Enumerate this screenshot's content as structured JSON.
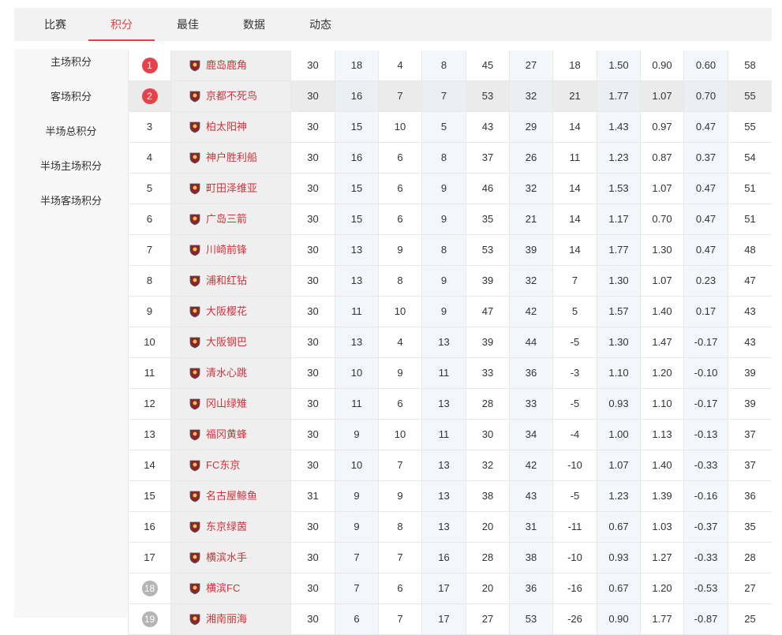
{
  "tabs": {
    "items": [
      "比赛",
      "积分",
      "最佳",
      "数据",
      "动态"
    ],
    "active": 1
  },
  "sidebar": {
    "items": [
      "主场积分",
      "客场积分",
      "半场总积分",
      "半场主场积分",
      "半场客场积分"
    ]
  },
  "table": {
    "highlight_row": 1,
    "rows": [
      {
        "rank": "1",
        "badge": "#e5424c",
        "team": "鹿岛鹿角",
        "stats": [
          "30",
          "18",
          "4",
          "8",
          "45",
          "27",
          "18",
          "1.50",
          "0.90",
          "0.60",
          "58"
        ]
      },
      {
        "rank": "2",
        "badge": "#e5424c",
        "team": "京都不死鸟",
        "stats": [
          "30",
          "16",
          "7",
          "7",
          "53",
          "32",
          "21",
          "1.77",
          "1.07",
          "0.70",
          "55"
        ]
      },
      {
        "rank": "3",
        "team": "柏太阳神",
        "stats": [
          "30",
          "15",
          "10",
          "5",
          "43",
          "29",
          "14",
          "1.43",
          "0.97",
          "0.47",
          "55"
        ]
      },
      {
        "rank": "4",
        "team": "神户胜利船",
        "stats": [
          "30",
          "16",
          "6",
          "8",
          "37",
          "26",
          "11",
          "1.23",
          "0.87",
          "0.37",
          "54"
        ]
      },
      {
        "rank": "5",
        "team": "町田泽维亚",
        "stats": [
          "30",
          "15",
          "6",
          "9",
          "46",
          "32",
          "14",
          "1.53",
          "1.07",
          "0.47",
          "51"
        ]
      },
      {
        "rank": "6",
        "team": "广岛三箭",
        "stats": [
          "30",
          "15",
          "6",
          "9",
          "35",
          "21",
          "14",
          "1.17",
          "0.70",
          "0.47",
          "51"
        ]
      },
      {
        "rank": "7",
        "team": "川崎前锋",
        "stats": [
          "30",
          "13",
          "9",
          "8",
          "53",
          "39",
          "14",
          "1.77",
          "1.30",
          "0.47",
          "48"
        ]
      },
      {
        "rank": "8",
        "team": "浦和红钻",
        "stats": [
          "30",
          "13",
          "8",
          "9",
          "39",
          "32",
          "7",
          "1.30",
          "1.07",
          "0.23",
          "47"
        ]
      },
      {
        "rank": "9",
        "team": "大阪樱花",
        "stats": [
          "30",
          "11",
          "10",
          "9",
          "47",
          "42",
          "5",
          "1.57",
          "1.40",
          "0.17",
          "43"
        ]
      },
      {
        "rank": "10",
        "team": "大阪钢巴",
        "stats": [
          "30",
          "13",
          "4",
          "13",
          "39",
          "44",
          "-5",
          "1.30",
          "1.47",
          "-0.17",
          "43"
        ]
      },
      {
        "rank": "11",
        "team": "清水心跳",
        "stats": [
          "30",
          "10",
          "9",
          "11",
          "33",
          "36",
          "-3",
          "1.10",
          "1.20",
          "-0.10",
          "39"
        ]
      },
      {
        "rank": "12",
        "team": "冈山绿雉",
        "stats": [
          "30",
          "11",
          "6",
          "13",
          "28",
          "33",
          "-5",
          "0.93",
          "1.10",
          "-0.17",
          "39"
        ]
      },
      {
        "rank": "13",
        "team": "福冈黄蜂",
        "stats": [
          "30",
          "9",
          "10",
          "11",
          "30",
          "34",
          "-4",
          "1.00",
          "1.13",
          "-0.13",
          "37"
        ]
      },
      {
        "rank": "14",
        "team": "FC东京",
        "stats": [
          "30",
          "10",
          "7",
          "13",
          "32",
          "42",
          "-10",
          "1.07",
          "1.40",
          "-0.33",
          "37"
        ]
      },
      {
        "rank": "15",
        "team": "名古屋鲸鱼",
        "stats": [
          "31",
          "9",
          "9",
          "13",
          "38",
          "43",
          "-5",
          "1.23",
          "1.39",
          "-0.16",
          "36"
        ]
      },
      {
        "rank": "16",
        "team": "东京绿茵",
        "stats": [
          "30",
          "9",
          "8",
          "13",
          "20",
          "31",
          "-11",
          "0.67",
          "1.03",
          "-0.37",
          "35"
        ]
      },
      {
        "rank": "17",
        "team": "横滨水手",
        "stats": [
          "30",
          "7",
          "7",
          "16",
          "28",
          "38",
          "-10",
          "0.93",
          "1.27",
          "-0.33",
          "28"
        ]
      },
      {
        "rank": "18",
        "badge": "#b5b5b5",
        "team": "横滨FC",
        "stats": [
          "30",
          "7",
          "6",
          "17",
          "20",
          "36",
          "-16",
          "0.67",
          "1.20",
          "-0.53",
          "27"
        ]
      },
      {
        "rank": "19",
        "badge": "#b5b5b5",
        "team": "湘南丽海",
        "stats": [
          "30",
          "6",
          "7",
          "17",
          "27",
          "53",
          "-26",
          "0.90",
          "1.77",
          "-0.87",
          "25"
        ]
      }
    ]
  }
}
